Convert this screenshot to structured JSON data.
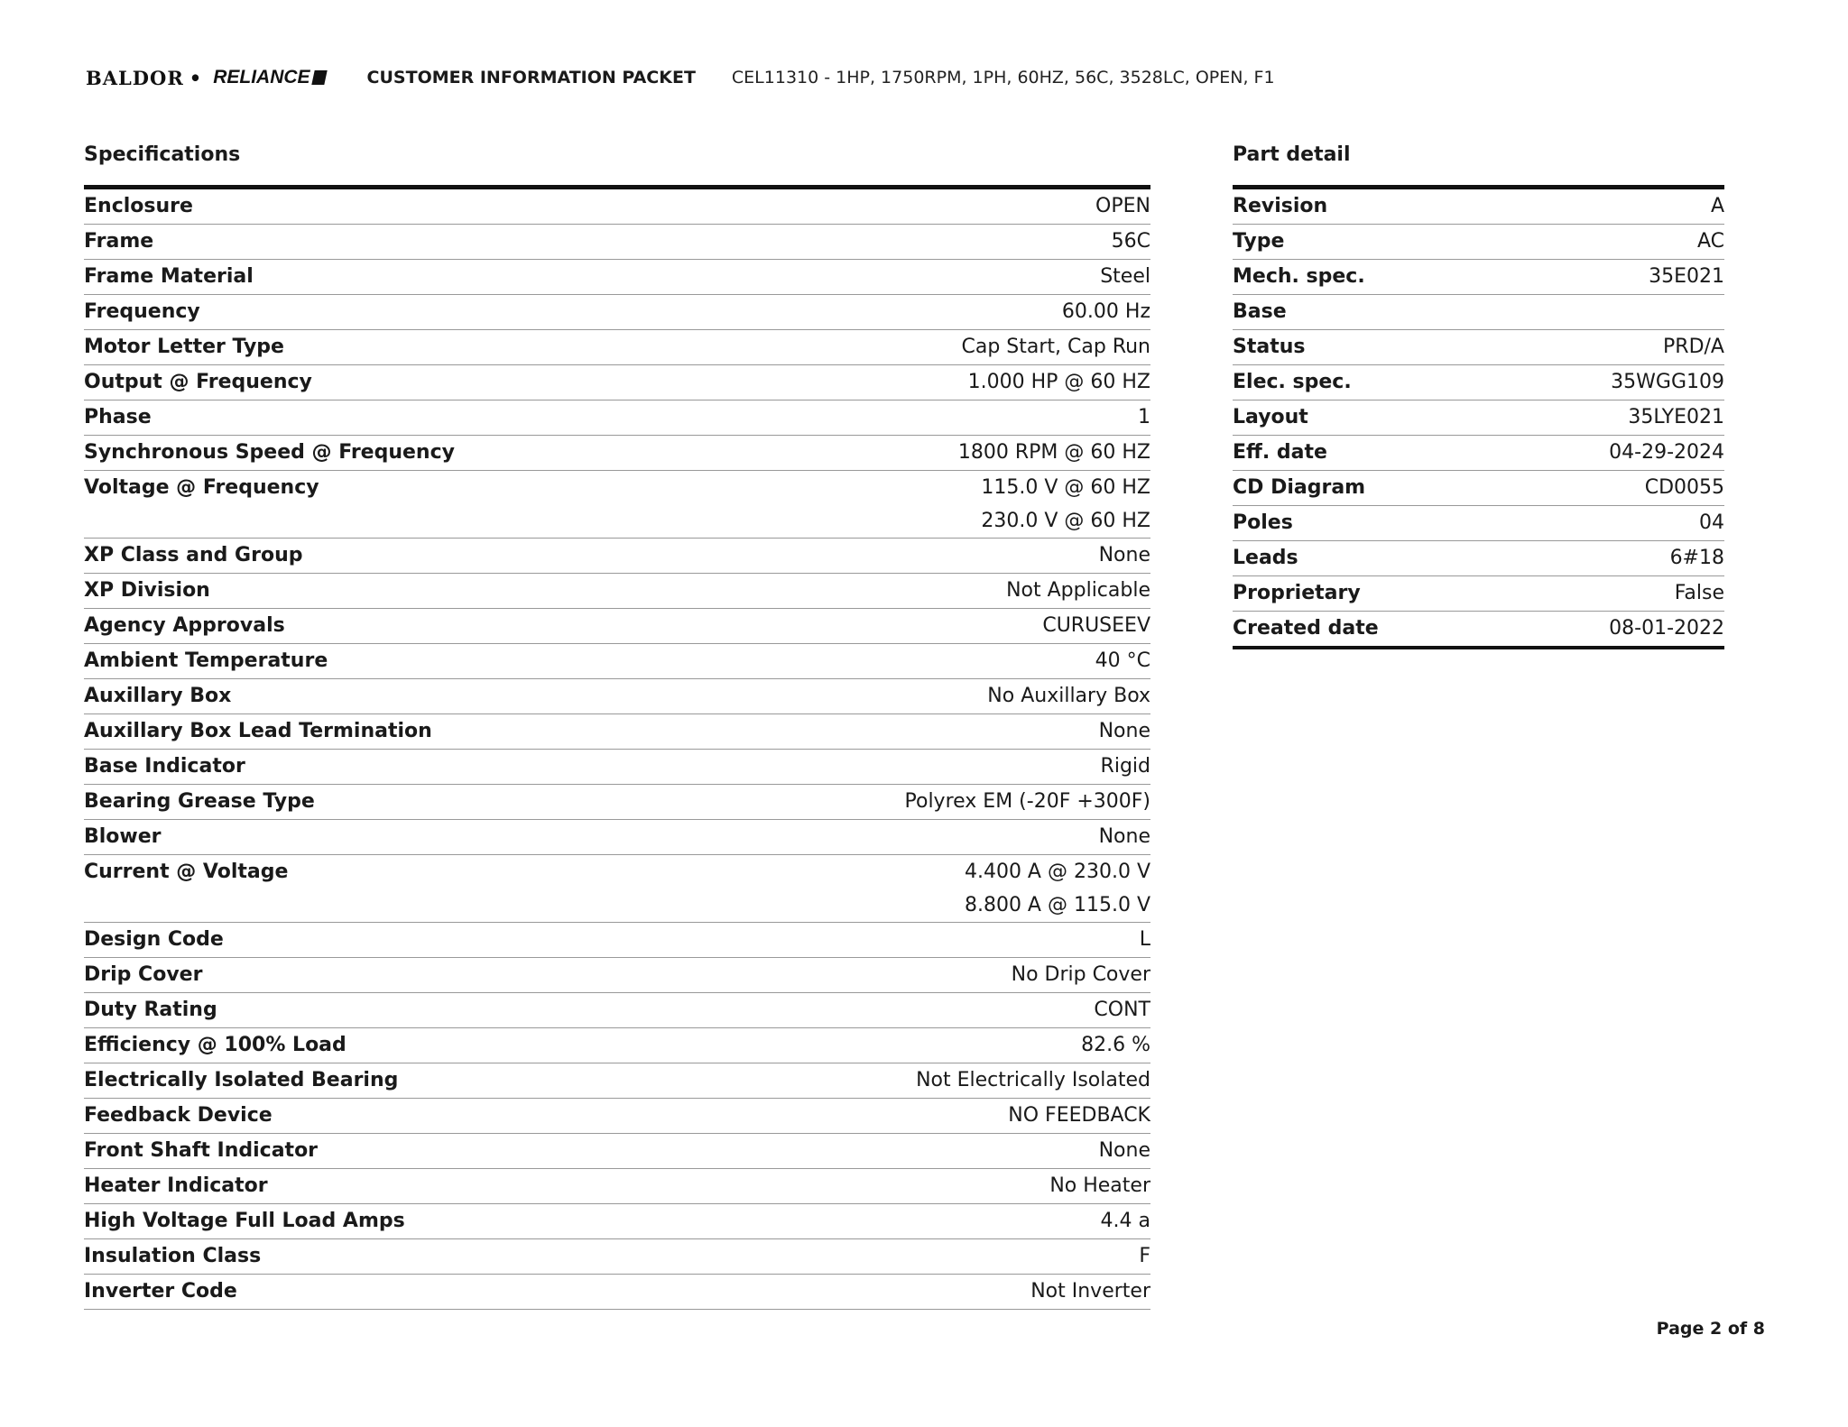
{
  "header": {
    "logo_text": "BALDOR • RELIANCE",
    "packet_title": "CUSTOMER INFORMATION PACKET",
    "model": "CEL11310 - 1HP, 1750RPM, 1PH, 60HZ, 56C, 3528LC, OPEN, F1"
  },
  "specifications": {
    "title": "Specifications",
    "rows": [
      {
        "label": "Enclosure",
        "values": [
          "OPEN"
        ]
      },
      {
        "label": "Frame",
        "values": [
          "56C"
        ]
      },
      {
        "label": "Frame Material",
        "values": [
          "Steel"
        ]
      },
      {
        "label": "Frequency",
        "values": [
          "60.00 Hz"
        ]
      },
      {
        "label": "Motor Letter Type",
        "values": [
          "Cap Start, Cap Run"
        ]
      },
      {
        "label": "Output @ Frequency",
        "values": [
          "1.000 HP @ 60 HZ"
        ]
      },
      {
        "label": "Phase",
        "values": [
          "1"
        ]
      },
      {
        "label": "Synchronous Speed @ Frequency",
        "values": [
          "1800 RPM @ 60 HZ"
        ]
      },
      {
        "label": "Voltage @ Frequency",
        "values": [
          "115.0 V @ 60 HZ",
          "230.0 V @ 60 HZ"
        ]
      },
      {
        "label": "XP Class and Group",
        "values": [
          "None"
        ]
      },
      {
        "label": "XP Division",
        "values": [
          "Not Applicable"
        ]
      },
      {
        "label": "Agency Approvals",
        "values": [
          "CURUSEEV"
        ]
      },
      {
        "label": "Ambient Temperature",
        "values": [
          "40 °C"
        ]
      },
      {
        "label": "Auxillary Box",
        "values": [
          "No Auxillary Box"
        ]
      },
      {
        "label": "Auxillary Box Lead Termination",
        "values": [
          "None"
        ]
      },
      {
        "label": "Base Indicator",
        "values": [
          "Rigid"
        ]
      },
      {
        "label": "Bearing Grease Type",
        "values": [
          "Polyrex EM (-20F +300F)"
        ]
      },
      {
        "label": "Blower",
        "values": [
          "None"
        ]
      },
      {
        "label": "Current @ Voltage",
        "values": [
          "4.400 A @ 230.0 V",
          "8.800 A @ 115.0 V"
        ]
      },
      {
        "label": "Design Code",
        "values": [
          "L"
        ]
      },
      {
        "label": "Drip Cover",
        "values": [
          "No Drip Cover"
        ]
      },
      {
        "label": "Duty Rating",
        "values": [
          "CONT"
        ]
      },
      {
        "label": "Efficiency @ 100% Load",
        "values": [
          "82.6 %"
        ]
      },
      {
        "label": "Electrically Isolated Bearing",
        "values": [
          "Not Electrically Isolated"
        ]
      },
      {
        "label": "Feedback Device",
        "values": [
          "NO FEEDBACK"
        ]
      },
      {
        "label": "Front Shaft Indicator",
        "values": [
          "None"
        ]
      },
      {
        "label": "Heater Indicator",
        "values": [
          "No Heater"
        ]
      },
      {
        "label": "High Voltage Full Load Amps",
        "values": [
          "4.4 a"
        ]
      },
      {
        "label": "Insulation Class",
        "values": [
          "F"
        ]
      },
      {
        "label": "Inverter Code",
        "values": [
          "Not Inverter"
        ]
      }
    ]
  },
  "part_detail": {
    "title": "Part detail",
    "rows": [
      {
        "label": "Revision",
        "values": [
          "A"
        ]
      },
      {
        "label": "Type",
        "values": [
          "AC"
        ]
      },
      {
        "label": "Mech. spec.",
        "values": [
          "35E021"
        ]
      },
      {
        "label": "Base",
        "values": [
          ""
        ]
      },
      {
        "label": "Status",
        "values": [
          "PRD/A"
        ]
      },
      {
        "label": "Elec. spec.",
        "values": [
          "35WGG109"
        ]
      },
      {
        "label": "Layout",
        "values": [
          "35LYE021"
        ]
      },
      {
        "label": "Eff. date",
        "values": [
          "04-29-2024"
        ]
      },
      {
        "label": "CD Diagram",
        "values": [
          "CD0055"
        ]
      },
      {
        "label": "Poles",
        "values": [
          "04"
        ]
      },
      {
        "label": "Leads",
        "values": [
          "6#18"
        ]
      },
      {
        "label": "Proprietary",
        "values": [
          "False"
        ]
      },
      {
        "label": "Created date",
        "values": [
          "08-01-2022"
        ]
      }
    ]
  },
  "footer": {
    "page": "Page 2 of 8"
  }
}
